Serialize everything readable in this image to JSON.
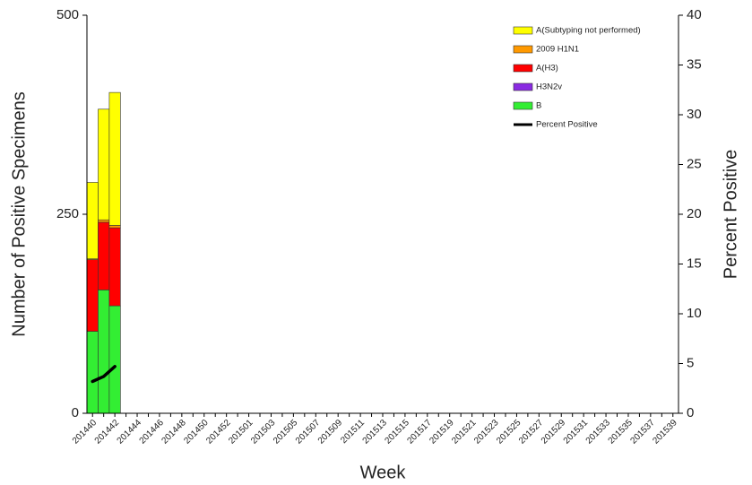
{
  "chart_data": {
    "type": "bar",
    "x_label": "Week",
    "y_label": "Number of Positive Specimens",
    "y2_label": "Percent Positive",
    "categories": [
      "201440",
      null,
      "201442",
      null,
      "201444",
      null,
      "201446",
      null,
      "201448",
      null,
      "201450",
      null,
      "201452",
      null,
      "201501",
      null,
      "201503",
      null,
      "201505",
      null,
      "201507",
      null,
      "201509",
      null,
      "201511",
      null,
      "201513",
      null,
      "201515",
      null,
      "201517",
      null,
      "201519",
      null,
      "201521",
      null,
      "201523",
      null,
      "201525",
      null,
      "201527",
      null,
      "201529",
      null,
      "201531",
      null,
      "201533",
      null,
      "201535",
      null,
      "201537",
      null,
      "201539"
    ],
    "ylim": [
      0,
      500
    ],
    "yticks": [
      0,
      250,
      500
    ],
    "y2lim": [
      0,
      40
    ],
    "y2ticks": [
      0,
      5,
      10,
      15,
      20,
      25,
      30,
      35,
      40
    ],
    "series": [
      {
        "name": "A(Subtyping not performed)",
        "color": "#ffff00",
        "values": [
          96,
          139,
          167,
          null,
          null,
          null,
          null,
          null,
          null,
          null,
          null,
          null,
          null,
          null,
          null,
          null,
          null,
          null,
          null,
          null,
          null,
          null,
          null,
          null,
          null,
          null,
          null,
          null,
          null,
          null,
          null,
          null,
          null,
          null,
          null,
          null,
          null,
          null,
          null,
          null,
          null,
          null,
          null,
          null,
          null,
          null,
          null,
          null,
          null,
          null,
          null,
          null,
          null
        ]
      },
      {
        "name": "2009 H1N1",
        "color": "#ff9900",
        "values": [
          1,
          3,
          3,
          null,
          null,
          null,
          null,
          null,
          null,
          null,
          null,
          null,
          null,
          null,
          null,
          null,
          null,
          null,
          null,
          null,
          null,
          null,
          null,
          null,
          null,
          null,
          null,
          null,
          null,
          null,
          null,
          null,
          null,
          null,
          null,
          null,
          null,
          null,
          null,
          null,
          null,
          null,
          null,
          null,
          null,
          null,
          null,
          null,
          null,
          null,
          null,
          null,
          null
        ]
      },
      {
        "name": "A(H3)",
        "color": "#ff0000",
        "values": [
          90,
          85,
          98,
          null,
          null,
          null,
          null,
          null,
          null,
          null,
          null,
          null,
          null,
          null,
          null,
          null,
          null,
          null,
          null,
          null,
          null,
          null,
          null,
          null,
          null,
          null,
          null,
          null,
          null,
          null,
          null,
          null,
          null,
          null,
          null,
          null,
          null,
          null,
          null,
          null,
          null,
          null,
          null,
          null,
          null,
          null,
          null,
          null,
          null,
          null,
          null,
          null,
          null
        ]
      },
      {
        "name": "H3N2v",
        "color": "#8a2be2",
        "values": [
          0,
          0,
          0,
          null,
          null,
          null,
          null,
          null,
          null,
          null,
          null,
          null,
          null,
          null,
          null,
          null,
          null,
          null,
          null,
          null,
          null,
          null,
          null,
          null,
          null,
          null,
          null,
          null,
          null,
          null,
          null,
          null,
          null,
          null,
          null,
          null,
          null,
          null,
          null,
          null,
          null,
          null,
          null,
          null,
          null,
          null,
          null,
          null,
          null,
          null,
          null,
          null,
          null
        ]
      },
      {
        "name": "B",
        "color": "#33ee33",
        "values": [
          103,
          155,
          135,
          null,
          null,
          null,
          null,
          null,
          null,
          null,
          null,
          null,
          null,
          null,
          null,
          null,
          null,
          null,
          null,
          null,
          null,
          null,
          null,
          null,
          null,
          null,
          null,
          null,
          null,
          null,
          null,
          null,
          null,
          null,
          null,
          null,
          null,
          null,
          null,
          null,
          null,
          null,
          null,
          null,
          null,
          null,
          null,
          null,
          null,
          null,
          null,
          null,
          null
        ]
      },
      {
        "name": "Percent Positive",
        "color": "#000000",
        "type": "line",
        "axis": "y2",
        "values": [
          3.2,
          3.7,
          4.7,
          null,
          null,
          null,
          null,
          null,
          null,
          null,
          null,
          null,
          null,
          null,
          null,
          null,
          null,
          null,
          null,
          null,
          null,
          null,
          null,
          null,
          null,
          null,
          null,
          null,
          null,
          null,
          null,
          null,
          null,
          null,
          null,
          null,
          null,
          null,
          null,
          null,
          null,
          null,
          null,
          null,
          null,
          null,
          null,
          null,
          null,
          null,
          null,
          null,
          null
        ]
      }
    ]
  }
}
